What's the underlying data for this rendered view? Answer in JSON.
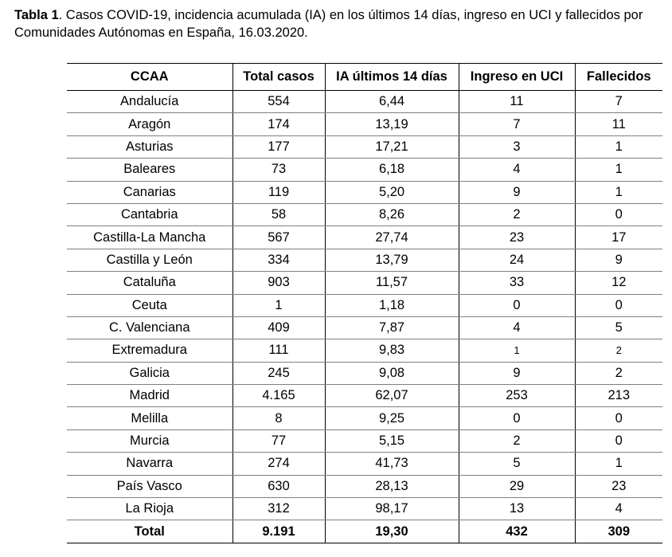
{
  "caption": {
    "label": "Tabla 1",
    "text_line1": ". Casos COVID-19, incidencia acumulada (IA) en los últimos 14 días, ingreso en UCI y fallecidos por",
    "text_line2": "Comunidades Autónomas en España, 16.03.2020."
  },
  "table": {
    "headers": [
      "CCAA",
      "Total casos",
      "IA últimos 14 días",
      "Ingreso en UCI",
      "Fallecidos"
    ],
    "rows": [
      [
        "Andalucía",
        "554",
        "6,44",
        "11",
        "7"
      ],
      [
        "Aragón",
        "174",
        "13,19",
        "7",
        "11"
      ],
      [
        "Asturias",
        "177",
        "17,21",
        "3",
        "1"
      ],
      [
        "Baleares",
        "73",
        "6,18",
        "4",
        "1"
      ],
      [
        "Canarias",
        "119",
        "5,20",
        "9",
        "1"
      ],
      [
        "Cantabria",
        "58",
        "8,26",
        "2",
        "0"
      ],
      [
        "Castilla-La Mancha",
        "567",
        "27,74",
        "23",
        "17"
      ],
      [
        "Castilla y León",
        "334",
        "13,79",
        "24",
        "9"
      ],
      [
        "Cataluña",
        "903",
        "11,57",
        "33",
        "12"
      ],
      [
        "Ceuta",
        "1",
        "1,18",
        "0",
        "0"
      ],
      [
        "C. Valenciana",
        "409",
        "7,87",
        "4",
        "5"
      ],
      [
        "Extremadura",
        "111",
        "9,83",
        "1",
        "2"
      ],
      [
        "Galicia",
        "245",
        "9,08",
        "9",
        "2"
      ],
      [
        "Madrid",
        "4.165",
        "62,07",
        "253",
        "213"
      ],
      [
        "Melilla",
        "8",
        "9,25",
        "0",
        "0"
      ],
      [
        "Murcia",
        "77",
        "5,15",
        "2",
        "0"
      ],
      [
        "Navarra",
        "274",
        "41,73",
        "5",
        "1"
      ],
      [
        "País Vasco",
        "630",
        "28,13",
        "29",
        "23"
      ],
      [
        "La Rioja",
        "312",
        "98,17",
        "13",
        "4"
      ]
    ],
    "total": [
      "Total",
      "9.191",
      "19,30",
      "432",
      "309"
    ]
  }
}
